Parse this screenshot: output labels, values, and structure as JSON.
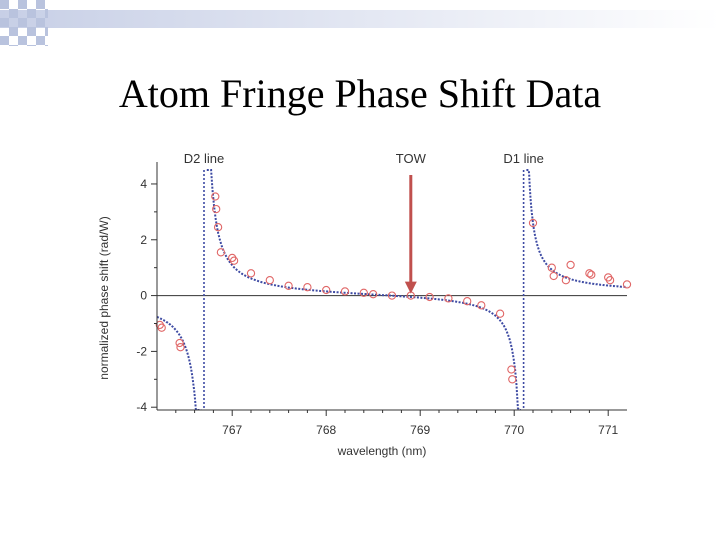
{
  "slide": {
    "title": "Atom Fringe Phase Shift Data"
  },
  "chart_data": {
    "type": "scatter",
    "title": "",
    "xlabel": "wavelength (nm)",
    "ylabel": "normalized phase shift (rad/W)",
    "xlim": [
      766.2,
      771.2
    ],
    "ylim": [
      -4.1,
      4.5
    ],
    "xticks": [
      767,
      768,
      769,
      770,
      771
    ],
    "yticks": [
      -4,
      -2,
      0,
      2,
      4
    ],
    "grid": false,
    "zero_line": true,
    "annotations": [
      {
        "text": "D2 line",
        "x": 766.7
      },
      {
        "text": "TOW",
        "x": 768.9,
        "arrow": true
      },
      {
        "text": "D1 line",
        "x": 770.1
      }
    ],
    "resonances": [
      766.7,
      770.1
    ],
    "series": [
      {
        "type": "scatter",
        "marker": "open-circle",
        "color": "#e06666",
        "points": [
          [
            766.23,
            -1.05
          ],
          [
            766.25,
            -1.15
          ],
          [
            766.44,
            -1.7
          ],
          [
            766.45,
            -1.85
          ],
          [
            766.82,
            3.55
          ],
          [
            766.83,
            3.1
          ],
          [
            766.85,
            2.45
          ],
          [
            766.88,
            1.55
          ],
          [
            767.0,
            1.35
          ],
          [
            767.02,
            1.25
          ],
          [
            767.2,
            0.8
          ],
          [
            767.4,
            0.55
          ],
          [
            767.6,
            0.35
          ],
          [
            767.8,
            0.3
          ],
          [
            768.0,
            0.2
          ],
          [
            768.2,
            0.15
          ],
          [
            768.4,
            0.1
          ],
          [
            768.5,
            0.05
          ],
          [
            768.7,
            0.0
          ],
          [
            768.9,
            0.0
          ],
          [
            769.1,
            -0.05
          ],
          [
            769.3,
            -0.1
          ],
          [
            769.5,
            -0.2
          ],
          [
            769.65,
            -0.35
          ],
          [
            769.85,
            -0.65
          ],
          [
            769.97,
            -2.65
          ],
          [
            769.98,
            -3.0
          ],
          [
            770.2,
            2.6
          ],
          [
            770.4,
            1.0
          ],
          [
            770.42,
            0.7
          ],
          [
            770.55,
            0.55
          ],
          [
            770.6,
            1.1
          ],
          [
            770.8,
            0.8
          ],
          [
            770.82,
            0.75
          ],
          [
            771.0,
            0.65
          ],
          [
            771.02,
            0.55
          ],
          [
            771.2,
            0.4
          ]
        ]
      },
      {
        "type": "line",
        "style": "dotted",
        "color": "#3d4aa3",
        "model": {
          "d2_amp": 0.35,
          "d1_amp": 0.25
        }
      }
    ]
  }
}
